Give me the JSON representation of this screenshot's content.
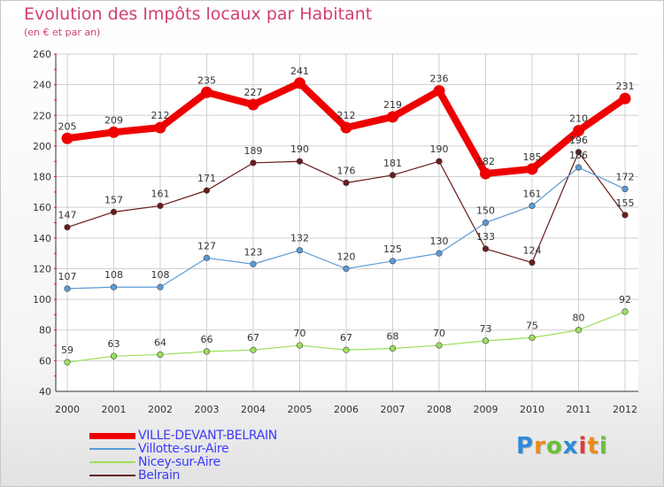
{
  "title": "Evolution des Impôts locaux par Habitant",
  "subtitle": "(en € et par an)",
  "logo_text": "Proxiti",
  "chart_data": {
    "type": "line",
    "title": "Evolution des Impôts locaux par Habitant",
    "subtitle": "(en € et par an)",
    "xlabel": "",
    "ylabel": "",
    "categories": [
      "2000",
      "2001",
      "2002",
      "2003",
      "2004",
      "2005",
      "2006",
      "2007",
      "2008",
      "2009",
      "2010",
      "2011",
      "2012"
    ],
    "ylim": [
      40,
      260
    ],
    "yticks": [
      40,
      60,
      80,
      100,
      120,
      140,
      160,
      180,
      200,
      220,
      240,
      260
    ],
    "grid": true,
    "legend": "bottom-left",
    "series": [
      {
        "name": "Belrain",
        "color": "#6b1a1a",
        "values": [
          147,
          157,
          161,
          171,
          189,
          190,
          176,
          181,
          190,
          133,
          124,
          196,
          155
        ]
      },
      {
        "name": "Villotte-sur-Aire",
        "color": "#5b9bd5",
        "values": [
          107,
          108,
          108,
          127,
          123,
          132,
          120,
          125,
          130,
          150,
          161,
          186,
          172
        ]
      },
      {
        "name": "Nicey-sur-Aire",
        "color": "#9be05a",
        "values": [
          59,
          63,
          64,
          66,
          67,
          70,
          67,
          68,
          70,
          73,
          75,
          80,
          92
        ]
      },
      {
        "name": "VILLE-DEVANT-BELRAIN",
        "color": "#ee0000",
        "values": [
          205,
          209,
          212,
          235,
          227,
          241,
          212,
          219,
          236,
          182,
          185,
          210,
          231
        ]
      }
    ],
    "legend_order": [
      "VILLE-DEVANT-BELRAIN",
      "Villotte-sur-Aire",
      "Nicey-sur-Aire",
      "Belrain"
    ]
  }
}
